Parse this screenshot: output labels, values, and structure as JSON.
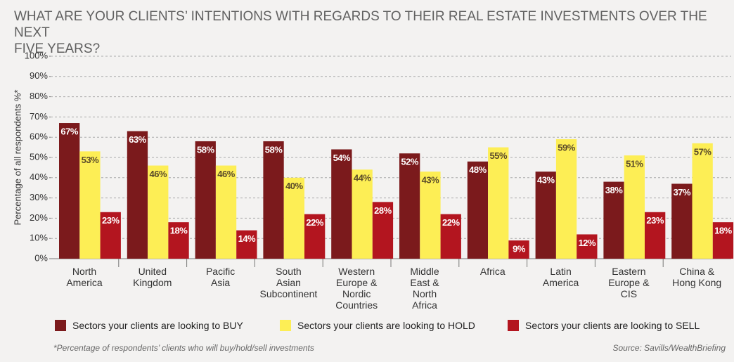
{
  "chart_data": {
    "type": "bar",
    "title": "WHAT ARE YOUR CLIENTS’ INTENTIONS WITH REGARDS TO THEIR REAL ESTATE INVESTMENTS OVER THE NEXT\nFIVE YEARS?",
    "y_label": "Percentage of all respondents %*",
    "categories": [
      "North\nAmerica",
      "United\nKingdom",
      "Pacific\nAsia",
      "South\nAsian\nSubcontinent",
      "Western\nEurope &\nNordic\nCountries",
      "Middle\nEast &\nNorth\nAfrica",
      "Africa",
      "Latin\nAmerica",
      "Eastern\nEurope &\nCIS",
      "China &\nHong Kong"
    ],
    "series": [
      {
        "name": "Sectors your clients are looking to BUY",
        "color": "#7b1a1c",
        "label_color": "#ffffff",
        "values": [
          67,
          63,
          58,
          58,
          54,
          52,
          48,
          43,
          38,
          37
        ],
        "value_labels": [
          "67%",
          "63%",
          "58%",
          "58%",
          "54%",
          "52%",
          "48%",
          "43%",
          "38%",
          "37%"
        ]
      },
      {
        "name": "Sectors your clients are looking to HOLD",
        "color": "#fdee55",
        "label_color": "#5a4a2a",
        "values": [
          53,
          46,
          46,
          40,
          44,
          43,
          55,
          59,
          51,
          57
        ],
        "value_labels": [
          "53%",
          "46%",
          "46%",
          "40%",
          "44%",
          "43%",
          "55%",
          "59%",
          "51%",
          "57%"
        ]
      },
      {
        "name": "Sectors your clients are looking to SELL",
        "color": "#b3151f",
        "label_color": "#ffffff",
        "values": [
          23,
          18,
          14,
          22,
          28,
          22,
          9,
          12,
          23,
          18
        ],
        "value_labels": [
          "23%",
          "18%",
          "14%",
          "22%",
          "28%",
          "22%",
          "9%",
          "12%",
          "23%",
          "18%"
        ]
      }
    ],
    "ylim": [
      0,
      100
    ],
    "yticks": [
      {
        "value": 0,
        "label": "0%"
      },
      {
        "value": 10,
        "label": "10%"
      },
      {
        "value": 20,
        "label": "20%"
      },
      {
        "value": 30,
        "label": "30%"
      },
      {
        "value": 40,
        "label": "40%"
      },
      {
        "value": 50,
        "label": "50%"
      },
      {
        "value": 60,
        "label": "60%"
      },
      {
        "value": 70,
        "label": "70%"
      },
      {
        "value": 80,
        "label": "80%"
      },
      {
        "value": 90,
        "label": "90%"
      },
      {
        "value": 100,
        "label": "100%"
      }
    ],
    "grid": true,
    "footnote": "*Percentage of respondents’ clients who will buy/hold/sell investments",
    "source": "Source: Savills/WealthBriefing"
  }
}
